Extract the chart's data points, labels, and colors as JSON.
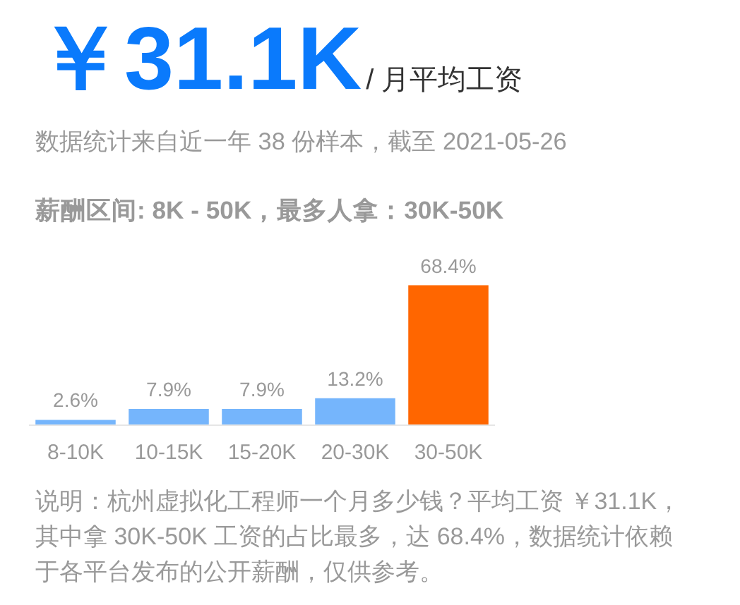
{
  "chart_data": {
    "type": "bar",
    "title": "￥31.1K",
    "subtitle": "/ 月平均工资",
    "annotations": [
      "数据统计来自近一年 38 份样本，截至 2021-05-26",
      "薪酬区间: 8K - 50K，最多人拿：30K-50K",
      "说明：杭州虚拟化工程师一个月多少钱？平均工资 ￥31.1K，其中拿 30K-50K 工资的占比最多，达 68.4%，数据统计依赖于各平台发布的公开薪酬，仅供参考。"
    ],
    "categories": [
      "8-10K",
      "10-15K",
      "15-20K",
      "20-30K",
      "30-50K"
    ],
    "values": [
      2.6,
      7.9,
      7.9,
      13.2,
      68.4
    ],
    "colors": [
      "#75b5fc",
      "#75b5fc",
      "#75b5fc",
      "#75b5fc",
      "#ff6600"
    ],
    "value_labels": [
      "2.6%",
      "7.9%",
      "7.9%",
      "13.2%",
      "68.4%"
    ]
  }
}
